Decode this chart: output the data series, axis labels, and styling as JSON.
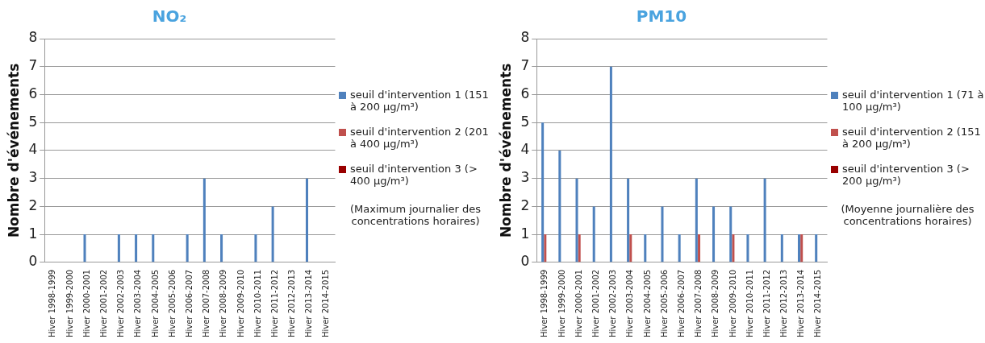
{
  "chart_data": [
    {
      "type": "bar",
      "title": "NO₂",
      "ylabel": "Nombre d'événements",
      "categories": [
        "Hiver 1998-1999",
        "Hiver 1999-2000",
        "Hiver 2000-2001",
        "Hiver 2001-2002",
        "Hiver 2002-2003",
        "Hiver 2003-2004",
        "Hiver 2004-2005",
        "Hiver 2005-2006",
        "Hiver 2006-2007",
        "Hiver 2007-2008",
        "Hiver 2008-2009",
        "Hiver 2009-2010",
        "Hiver 2010-2011",
        "Hiver 2011-2012",
        "Hiver 2012-2013",
        "Hiver 2013-2014",
        "Hiver 2014-2015"
      ],
      "series": [
        {
          "name": "seuil d'intervention 1 (151 à 200 µg/m³)",
          "color": "#4f81bd",
          "values": [
            0,
            0,
            1,
            0,
            1,
            1,
            1,
            0,
            1,
            3,
            1,
            0,
            1,
            2,
            0,
            3,
            0
          ]
        },
        {
          "name": "seuil d'intervention 2 (201 à 400 µg/m³)",
          "color": "#c0504d",
          "values": [
            0,
            0,
            0,
            0,
            0,
            0,
            0,
            0,
            0,
            0,
            0,
            0,
            0,
            0,
            0,
            0,
            0
          ]
        },
        {
          "name": "seuil d'intervention 3 (> 400 µg/m³)",
          "color": "#990000",
          "values": [
            0,
            0,
            0,
            0,
            0,
            0,
            0,
            0,
            0,
            0,
            0,
            0,
            0,
            0,
            0,
            0,
            0
          ]
        }
      ],
      "ylim": [
        0,
        8
      ],
      "yticks": [
        0,
        1,
        2,
        3,
        4,
        5,
        6,
        7,
        8
      ],
      "grid": "y",
      "legend": "right",
      "annotations": [
        "(Maximum journalier des concentrations horaires)"
      ]
    },
    {
      "type": "bar",
      "title": "PM10",
      "ylabel": "Nombre d'événements",
      "categories": [
        "Hiver 1998-1999",
        "Hiver 1999-2000",
        "Hiver 2000-2001",
        "Hiver 2001-2002",
        "Hiver 2002-2003",
        "Hiver 2003-2004",
        "Hiver 2004-2005",
        "Hiver 2005-2006",
        "Hiver 2006-2007",
        "Hiver 2007-2008",
        "Hiver 2008-2009",
        "Hiver 2009-2010",
        "Hiver 2010-2011",
        "Hiver 2011-2012",
        "Hiver 2012-2013",
        "Hiver 2013-2014",
        "Hiver 2014-2015"
      ],
      "series": [
        {
          "name": "seuil d'intervention 1 (71 à 100 µg/m³)",
          "color": "#4f81bd",
          "values": [
            5,
            4,
            3,
            2,
            7,
            3,
            1,
            2,
            1,
            3,
            2,
            2,
            1,
            3,
            1,
            1,
            1
          ]
        },
        {
          "name": "seuil d'intervention 2 (151 à 200 µg/m³)",
          "color": "#c0504d",
          "values": [
            1,
            0,
            1,
            0,
            0,
            1,
            0,
            0,
            0,
            1,
            0,
            1,
            0,
            0,
            0,
            1,
            0
          ]
        },
        {
          "name": "seuil d'intervention 3 (> 200 µg/m³)",
          "color": "#990000",
          "values": [
            0,
            0,
            0,
            0,
            0,
            0,
            0,
            0,
            0,
            0,
            0,
            0,
            0,
            0,
            0,
            0,
            0
          ]
        }
      ],
      "ylim": [
        0,
        8
      ],
      "yticks": [
        0,
        1,
        2,
        3,
        4,
        5,
        6,
        7,
        8
      ],
      "grid": "y",
      "legend": "right",
      "annotations": [
        "(Moyenne journalière des concentrations horaires)"
      ]
    }
  ]
}
